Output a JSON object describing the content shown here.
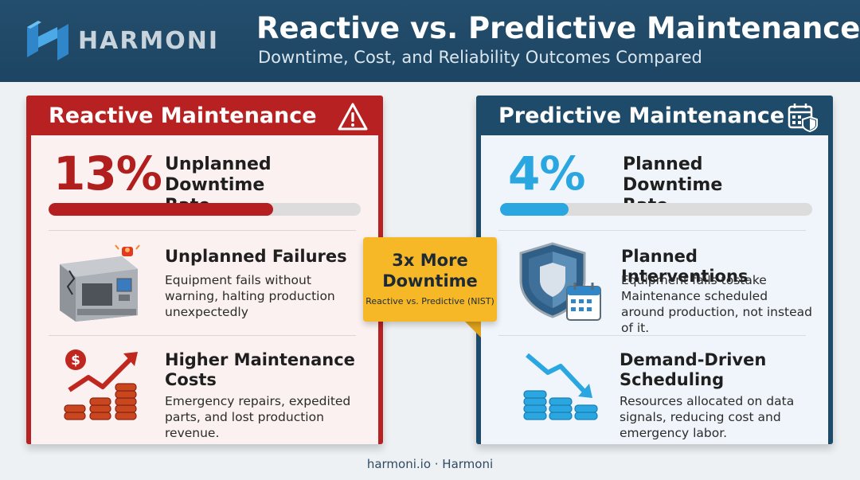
{
  "header": {
    "brand": "HARMONI",
    "title": "Reactive vs. Predictive Maintenance",
    "subtitle": "Downtime, Cost, and Reliability Outcomes Compared"
  },
  "colors": {
    "reactive_accent": "#b72121",
    "predictive_accent": "#1f4b6b",
    "predictive_bar": "#2aa6e0",
    "callout": "#f6b826"
  },
  "reactive": {
    "title": "Reactive Maintenance",
    "icon": "warning-triangle-icon",
    "metric": {
      "value": "13%",
      "label": "Unplanned Downtime Rate",
      "fill_percent": 72
    },
    "items": [
      {
        "icon": "broken-machine-icon",
        "title": "Unplanned Failures",
        "desc": "Equipment fails without warning, halting production unexpectedly"
      },
      {
        "icon": "rising-cost-icon",
        "title": "Higher Maintenance Costs",
        "desc": "Emergency repairs, expedited parts, and lost production revenue."
      }
    ]
  },
  "predictive": {
    "title": "Predictive Maintenance",
    "icon": "calendar-shield-icon",
    "metric": {
      "value": "4%",
      "label": "Planned Downtime Rate",
      "fill_percent": 22
    },
    "items": [
      {
        "icon": "shield-calendar-icon",
        "title": "Planned Interventions",
        "desc": "Equipment fails tostake Maintenance scheduled around production, not instead of it."
      },
      {
        "icon": "falling-cost-icon",
        "title": "Demand-Driven Scheduling",
        "desc": "Resources allocated on data signals, reducing cost and emergency labor."
      }
    ]
  },
  "callout": {
    "headline": "3x More Downtime",
    "note": "Reactive vs. Predictive (NIST)"
  },
  "footer": "harmoni.io · Harmoni"
}
